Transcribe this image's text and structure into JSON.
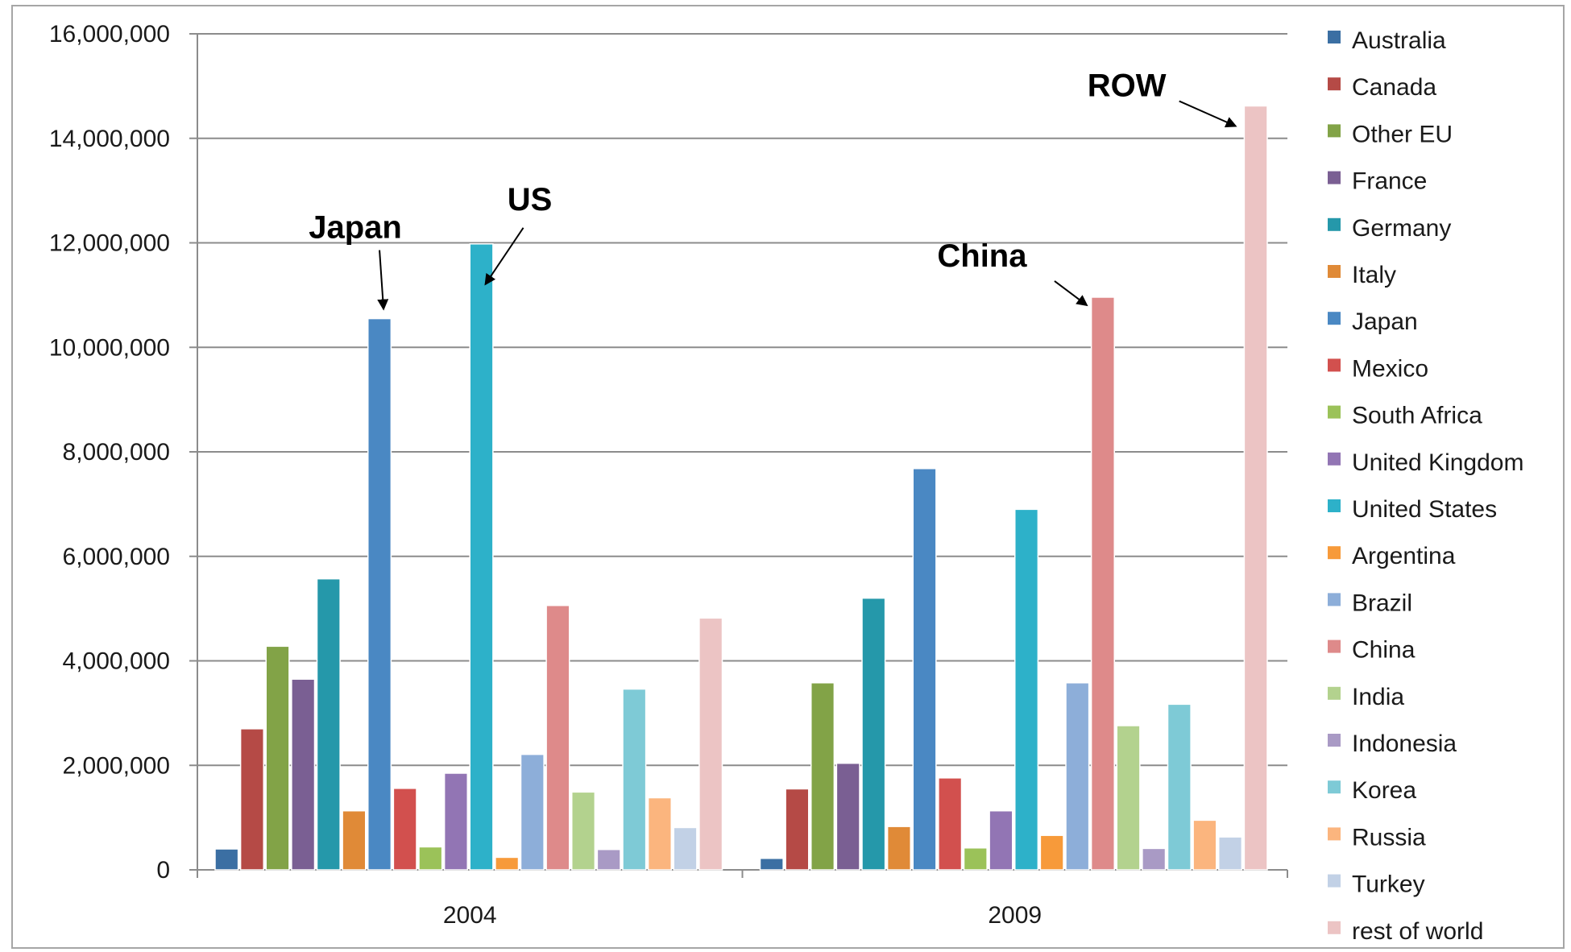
{
  "chart_data": {
    "type": "bar",
    "categories": [
      "2004",
      "2009"
    ],
    "ylim": [
      0,
      16000000
    ],
    "yticks": [
      0,
      2000000,
      4000000,
      6000000,
      8000000,
      10000000,
      12000000,
      14000000,
      16000000
    ],
    "ytick_labels": [
      "0",
      "2,000,000",
      "4,000,000",
      "6,000,000",
      "8,000,000",
      "10,000,000",
      "12,000,000",
      "14,000,000",
      "16,000,000"
    ],
    "grid": true,
    "legend_position": "right",
    "series": [
      {
        "name": "Australia",
        "color": "#3b6fa3",
        "values": [
          400000,
          220000
        ]
      },
      {
        "name": "Canada",
        "color": "#b54a46",
        "values": [
          2700000,
          1550000
        ]
      },
      {
        "name": "Other EU",
        "color": "#82a347",
        "values": [
          4280000,
          3580000
        ]
      },
      {
        "name": "France",
        "color": "#7a5f93",
        "values": [
          3650000,
          2040000
        ]
      },
      {
        "name": "Germany",
        "color": "#2598aa",
        "values": [
          5570000,
          5200000
        ]
      },
      {
        "name": "Italy",
        "color": "#e08a37",
        "values": [
          1130000,
          830000
        ]
      },
      {
        "name": "Japan",
        "color": "#4a88c3",
        "values": [
          10550000,
          7680000
        ]
      },
      {
        "name": "Mexico",
        "color": "#d2504e",
        "values": [
          1560000,
          1760000
        ]
      },
      {
        "name": "South Africa",
        "color": "#9bc259",
        "values": [
          440000,
          420000
        ]
      },
      {
        "name": "United Kingdom",
        "color": "#9275b4",
        "values": [
          1850000,
          1130000
        ]
      },
      {
        "name": "United States",
        "color": "#2db1c9",
        "values": [
          11980000,
          6900000
        ]
      },
      {
        "name": "Argentina",
        "color": "#f79a3a",
        "values": [
          240000,
          660000
        ]
      },
      {
        "name": "Brazil",
        "color": "#8daed9",
        "values": [
          2210000,
          3580000
        ]
      },
      {
        "name": "China",
        "color": "#de8a8a",
        "values": [
          5060000,
          10960000
        ]
      },
      {
        "name": "India",
        "color": "#b3d28e",
        "values": [
          1490000,
          2760000
        ]
      },
      {
        "name": "Indonesia",
        "color": "#a99ac5",
        "values": [
          390000,
          410000
        ]
      },
      {
        "name": "Korea",
        "color": "#7ecad6",
        "values": [
          3460000,
          3170000
        ]
      },
      {
        "name": "Russia",
        "color": "#fbb57e",
        "values": [
          1380000,
          950000
        ]
      },
      {
        "name": "Turkey",
        "color": "#c2d1e6",
        "values": [
          810000,
          630000
        ]
      },
      {
        "name": "rest of world",
        "color": "#ecc4c4",
        "values": [
          4820000,
          14620000
        ]
      }
    ],
    "annotations": [
      {
        "text": "Japan",
        "series": "Japan",
        "category": "2004"
      },
      {
        "text": "US",
        "series": "United States",
        "category": "2004"
      },
      {
        "text": "China",
        "series": "China",
        "category": "2009"
      },
      {
        "text": "ROW",
        "series": "rest of world",
        "category": "2009"
      }
    ]
  }
}
